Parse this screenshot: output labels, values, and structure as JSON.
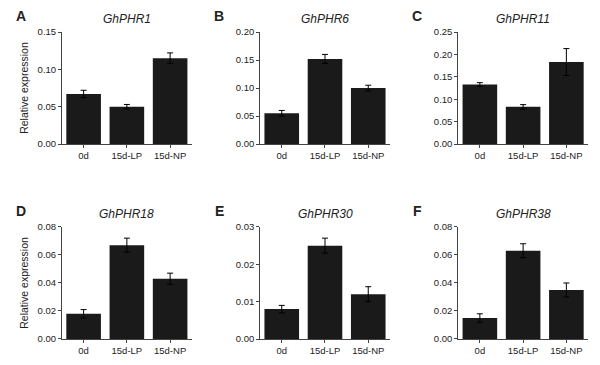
{
  "chart_data": [
    {
      "type": "bar",
      "title": "GhPHR1",
      "annotations": [
        "A"
      ],
      "ylabel": "Relative expression",
      "categories": [
        "0d",
        "15d-LP",
        "15d-NP"
      ],
      "values": [
        0.067,
        0.05,
        0.115
      ],
      "errors": [
        0.005,
        0.003,
        0.007
      ],
      "color": "#1a1a1a",
      "ylim": [
        0,
        0.15
      ],
      "yticks": [
        {
          "value": 0.0,
          "label": "0.00"
        },
        0.05,
        {
          "value": 0.1,
          "label": "0.10"
        },
        0.15
      ],
      "grid": false
    },
    {
      "type": "bar",
      "title": "GhPHR6",
      "annotations": [
        "B"
      ],
      "categories": [
        "0d",
        "15d-LP",
        "15d-NP"
      ],
      "values": [
        0.055,
        0.152,
        0.1
      ],
      "errors": [
        0.005,
        0.008,
        0.005
      ],
      "color": "#1a1a1a",
      "ylim": [
        0,
        0.2
      ],
      "yticks": [
        {
          "value": 0.0,
          "label": "0.00"
        },
        0.05,
        {
          "value": 0.1,
          "label": "0.10"
        },
        0.15,
        {
          "value": 0.2,
          "label": "0.20"
        }
      ],
      "grid": false
    },
    {
      "type": "bar",
      "title": "GhPHR11",
      "annotations": [
        "C"
      ],
      "categories": [
        "0d",
        "15d-LP",
        "15d-NP"
      ],
      "values": [
        0.133,
        0.083,
        0.183
      ],
      "errors": [
        0.004,
        0.005,
        0.03
      ],
      "color": "#1a1a1a",
      "ylim": [
        0,
        0.25
      ],
      "yticks": [
        {
          "value": 0.0,
          "label": "0.00"
        },
        0.05,
        {
          "value": 0.1,
          "label": "0.10"
        },
        0.15,
        {
          "value": 0.2,
          "label": "0.20"
        },
        0.25
      ],
      "grid": false
    },
    {
      "type": "bar",
      "title": "GhPHR18",
      "annotations": [
        "D"
      ],
      "ylabel": "Relative expression",
      "categories": [
        "0d",
        "15d-LP",
        "15d-NP"
      ],
      "values": [
        0.018,
        0.067,
        0.043
      ],
      "errors": [
        0.003,
        0.005,
        0.004
      ],
      "color": "#1a1a1a",
      "ylim": [
        0,
        0.08
      ],
      "yticks": [
        {
          "value": 0.0,
          "label": "0.00"
        },
        0.02,
        0.04,
        0.06,
        0.08
      ],
      "grid": false
    },
    {
      "type": "bar",
      "title": "GhPHR30",
      "annotations": [
        "E"
      ],
      "categories": [
        "0d",
        "15d-LP",
        "15d-NP"
      ],
      "values": [
        0.008,
        0.025,
        0.012
      ],
      "errors": [
        0.001,
        0.002,
        0.002
      ],
      "color": "#1a1a1a",
      "ylim": [
        0,
        0.03
      ],
      "yticks": [
        {
          "value": 0.0,
          "label": "0.00"
        },
        0.01,
        0.02,
        0.03
      ],
      "grid": false
    },
    {
      "type": "bar",
      "title": "GhPHR38",
      "annotations": [
        "F"
      ],
      "categories": [
        "0d",
        "15d-LP",
        "15d-NP"
      ],
      "values": [
        0.015,
        0.063,
        0.035
      ],
      "errors": [
        0.003,
        0.005,
        0.005
      ],
      "color": "#1a1a1a",
      "ylim": [
        0,
        0.08
      ],
      "yticks": [
        {
          "value": 0.0,
          "label": "0.00"
        },
        0.02,
        0.04,
        0.06,
        0.08
      ],
      "grid": false
    }
  ]
}
